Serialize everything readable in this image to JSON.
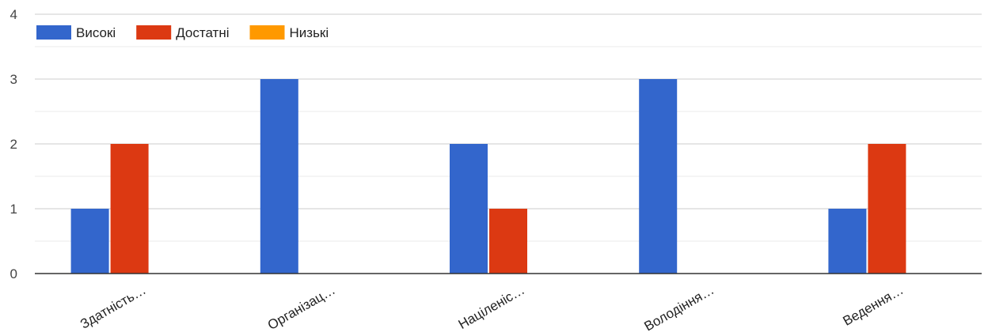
{
  "chart_data": {
    "type": "bar",
    "categories": [
      "Здатність…",
      "Організац…",
      "Націленіс…",
      "Володіння…",
      "Ведення…"
    ],
    "series": [
      {
        "name": "Високі",
        "color": "#3366cc",
        "values": [
          1,
          3,
          2,
          3,
          1
        ]
      },
      {
        "name": "Достатні",
        "color": "#dc3912",
        "values": [
          2,
          0,
          1,
          0,
          2
        ]
      },
      {
        "name": "Низькі",
        "color": "#ff9900",
        "values": [
          0,
          0,
          0,
          0,
          0
        ]
      }
    ],
    "ylim": [
      0,
      4
    ],
    "yticks": [
      0,
      1,
      2,
      3,
      4
    ],
    "grid": true,
    "legend": "top-left"
  }
}
